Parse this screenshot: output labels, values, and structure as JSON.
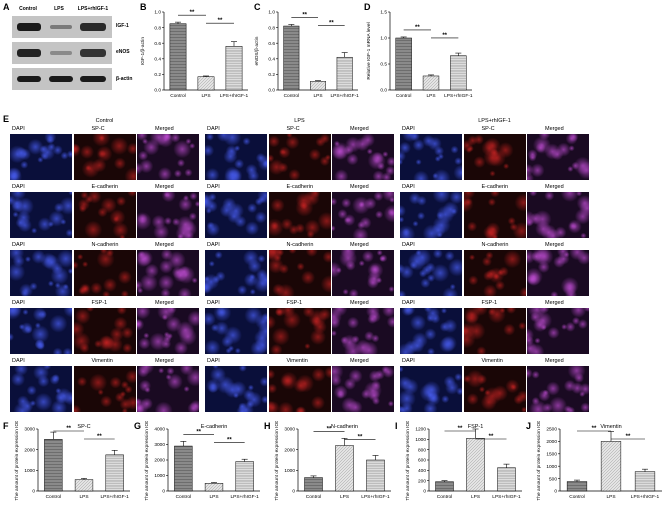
{
  "panels": {
    "A": "A",
    "B": "B",
    "C": "C",
    "D": "D",
    "E": "E",
    "F": "F",
    "G": "G",
    "H": "H",
    "I": "I",
    "J": "J"
  },
  "blot": {
    "lanes": [
      "Control",
      "LPS",
      "LPS+rhIGF-1"
    ],
    "bands": [
      "IGF-1",
      "eNOS",
      "β-actin"
    ]
  },
  "grid": {
    "groups": [
      "Control",
      "LPS",
      "LPS+rhIGF-1"
    ],
    "rows": [
      {
        "marker": "SP-C",
        "color": "red"
      },
      {
        "marker": "E-cadherin",
        "color": "red"
      },
      {
        "marker": "N-cadherin",
        "color": "red"
      },
      {
        "marker": "FSP-1",
        "color": "red"
      },
      {
        "marker": "Vimentin",
        "color": "red"
      }
    ],
    "dapi": "DAPI",
    "merged": "Merged"
  },
  "chart_data": [
    {
      "panel": "B",
      "type": "bar",
      "ylabel": "IGF-1/β-actin",
      "categories": [
        "Control",
        "LPS",
        "LPS+rhIGF-1"
      ],
      "values": [
        0.85,
        0.17,
        0.56
      ],
      "errors": [
        0.02,
        0.01,
        0.06
      ],
      "ylim": [
        0,
        1.0
      ],
      "yticks": [
        "0.0",
        "0.2",
        "0.4",
        "0.6",
        "0.8",
        "1.0"
      ],
      "sig": [
        "**",
        "**"
      ]
    },
    {
      "panel": "C",
      "type": "bar",
      "ylabel": "eNOS/β-actin",
      "categories": [
        "Control",
        "LPS",
        "LPS+rhIGF-1"
      ],
      "values": [
        0.82,
        0.11,
        0.42
      ],
      "errors": [
        0.02,
        0.01,
        0.06
      ],
      "ylim": [
        0,
        1.0
      ],
      "yticks": [
        "0.0",
        "0.2",
        "0.4",
        "0.6",
        "0.8",
        "1.0"
      ],
      "sig": [
        "**",
        "**"
      ]
    },
    {
      "panel": "D",
      "type": "bar",
      "ylabel": "Relative IGF-1 mRNA level",
      "categories": [
        "Control",
        "LPS",
        "LPS+rhIGF-1"
      ],
      "values": [
        1.0,
        0.27,
        0.66
      ],
      "errors": [
        0.02,
        0.02,
        0.05
      ],
      "ylim": [
        0,
        1.5
      ],
      "yticks": [
        "0.0",
        "0.5",
        "1.0",
        "1.5"
      ],
      "sig": [
        "**",
        "**"
      ]
    },
    {
      "panel": "F",
      "type": "bar",
      "title": "SP-C",
      "ylabel": "The amount of protein expression IOD",
      "categories": [
        "Control",
        "LPS",
        "LPS+rhIGF-1"
      ],
      "values": [
        2500,
        550,
        1750
      ],
      "errors": [
        350,
        60,
        220
      ],
      "ylim": [
        0,
        3000
      ],
      "yticks": [
        "0",
        "1000",
        "2000",
        "3000"
      ],
      "sig": [
        "**",
        "**"
      ]
    },
    {
      "panel": "G",
      "type": "bar",
      "title": "E-cadherin",
      "ylabel": "The amount of protein expression IOD",
      "categories": [
        "Control",
        "LPS",
        "LPS+rhIGF-1"
      ],
      "values": [
        2900,
        500,
        1900
      ],
      "errors": [
        300,
        50,
        150
      ],
      "ylim": [
        0,
        4000
      ],
      "yticks": [
        "0",
        "1000",
        "2000",
        "3000",
        "4000"
      ],
      "sig": [
        "**",
        "**"
      ]
    },
    {
      "panel": "H",
      "type": "bar",
      "title": "N-cadherin",
      "ylabel": "The amount of protein expression IOD",
      "categories": [
        "Control",
        "LPS",
        "LPS+rhIGF-1"
      ],
      "values": [
        650,
        2200,
        1500
      ],
      "errors": [
        80,
        350,
        220
      ],
      "ylim": [
        0,
        3000
      ],
      "yticks": [
        "0",
        "1000",
        "2000",
        "3000"
      ],
      "sig": [
        "**",
        "**"
      ]
    },
    {
      "panel": "I",
      "type": "bar",
      "title": "FSP-1",
      "ylabel": "The amount of protein expression IOD",
      "categories": [
        "Control",
        "LPS",
        "LPS+rhIGF-1"
      ],
      "values": [
        180,
        1020,
        450
      ],
      "errors": [
        20,
        180,
        70
      ],
      "ylim": [
        0,
        1200
      ],
      "yticks": [
        "0",
        "200",
        "400",
        "600",
        "800",
        "1000",
        "1200"
      ],
      "sig": [
        "**",
        "**"
      ]
    },
    {
      "panel": "J",
      "type": "bar",
      "title": "Vimentin",
      "ylabel": "The amount of protein expression IOD",
      "categories": [
        "Control",
        "LPS",
        "LPS+rhIGF-1"
      ],
      "values": [
        380,
        2000,
        780
      ],
      "errors": [
        60,
        400,
        100
      ],
      "ylim": [
        0,
        2500
      ],
      "yticks": [
        "0",
        "500",
        "1000",
        "1500",
        "2000",
        "2500"
      ],
      "sig": [
        "**",
        "**"
      ]
    }
  ],
  "colors": {
    "bar_fill": [
      "#8a8a8a",
      "#e4e4e4",
      "#bdbdbd"
    ],
    "dapi": "#1a2a9a",
    "red": "#9a1010",
    "merged": "#6a1a7a"
  }
}
